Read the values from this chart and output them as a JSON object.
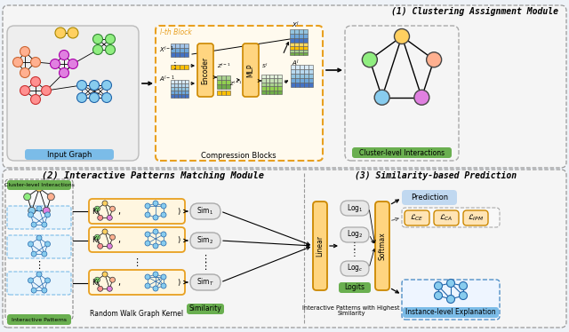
{
  "bg_color": "#EEF2F7",
  "module1_title": "(1) Clustering Assignment Module",
  "module2_title": "(2) Interactive Patterns Matching Module",
  "module3_title": "(3) Similarity-based Prediction",
  "label_input_graph": "Input Graph",
  "label_compression_blocks": "Compression Blocks",
  "label_cluster_interactions": "Cluster-level Interactions",
  "label_interactive_patterns": "Interactive Patterns",
  "label_cluster_level": "Cluster-level Interactions",
  "label_rw_kernel": "Random Walk Graph Kernel",
  "label_similarity": "Similarity",
  "label_logits": "Logits",
  "label_interactive_highest": "Interactive Patterns with Highest\nSimilarity",
  "label_prediction": "Prediction",
  "label_instance_explanation": "Instance-level Explanation",
  "label_lth_block": "l-th Block",
  "color_orange": "#E8A020",
  "color_green": "#6AAF50",
  "color_blue": "#5090C8",
  "color_gray": "#888888",
  "color_box_bg": "#F8F8F8",
  "color_light_orange": "#FFE8C0",
  "color_light_blue": "#D0E8F8",
  "color_light_green": "#D0F0C0"
}
